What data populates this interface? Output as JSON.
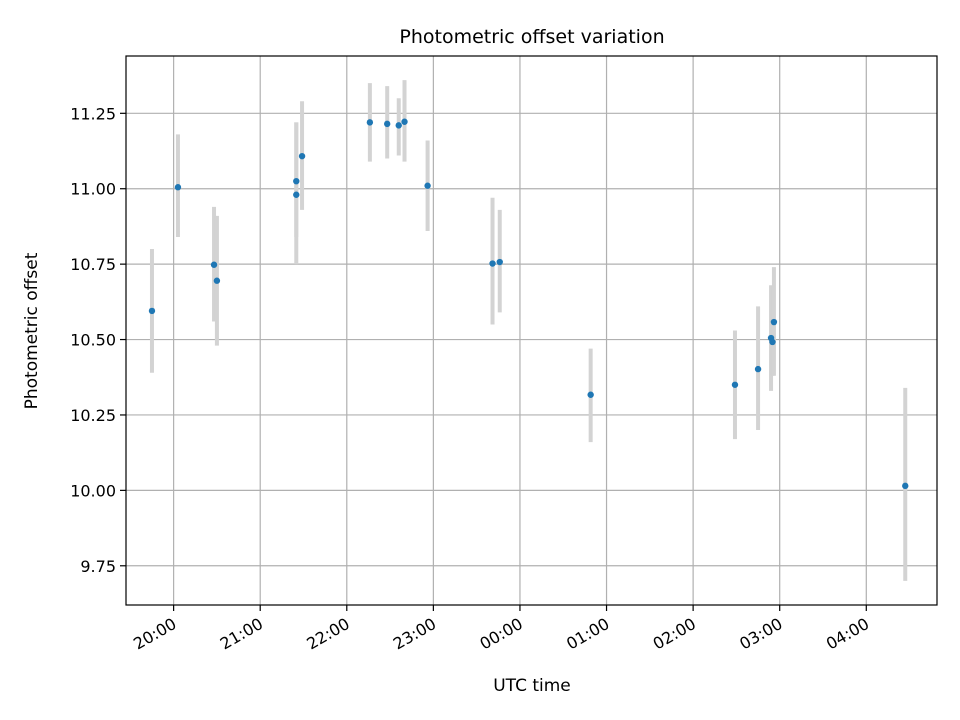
{
  "chart_data": {
    "type": "scatter",
    "title": "Photometric offset variation",
    "xlabel": "UTC time",
    "ylabel": "Photometric offset",
    "grid": true,
    "x_tick_labels": [
      "20:00",
      "21:00",
      "22:00",
      "23:00",
      "00:00",
      "01:00",
      "02:00",
      "03:00",
      "04:00"
    ],
    "y_tick_labels": [
      "9.75",
      "10.00",
      "10.25",
      "10.50",
      "10.75",
      "11.00",
      "11.25"
    ],
    "y_ticks": [
      9.75,
      10.0,
      10.25,
      10.5,
      10.75,
      11.0,
      11.25
    ],
    "xlim": [
      "19:27",
      "04:49"
    ],
    "ylim": [
      9.62,
      11.44
    ],
    "colors": {
      "point": "#1f77b4",
      "errorbar": "#d3d3d3",
      "grid": "#b0b0b0"
    },
    "points": [
      {
        "t": "19:45",
        "y": 10.595,
        "lo": 10.39,
        "hi": 10.8
      },
      {
        "t": "20:03",
        "y": 11.005,
        "lo": 10.84,
        "hi": 11.18
      },
      {
        "t": "20:28",
        "y": 10.748,
        "lo": 10.56,
        "hi": 10.94
      },
      {
        "t": "20:30",
        "y": 10.695,
        "lo": 10.48,
        "hi": 10.91
      },
      {
        "t": "21:25",
        "y": 10.98,
        "lo": 10.75,
        "hi": 11.22
      },
      {
        "t": "21:25",
        "y": 11.025,
        "lo": 10.84,
        "hi": 11.22
      },
      {
        "t": "21:29",
        "y": 11.108,
        "lo": 10.93,
        "hi": 11.29
      },
      {
        "t": "22:16",
        "y": 11.22,
        "lo": 11.09,
        "hi": 11.35
      },
      {
        "t": "22:28",
        "y": 11.215,
        "lo": 11.1,
        "hi": 11.34
      },
      {
        "t": "22:36",
        "y": 11.21,
        "lo": 11.11,
        "hi": 11.3
      },
      {
        "t": "22:40",
        "y": 11.222,
        "lo": 11.09,
        "hi": 11.36
      },
      {
        "t": "22:56",
        "y": 11.01,
        "lo": 10.86,
        "hi": 11.16
      },
      {
        "t": "23:41",
        "y": 10.752,
        "lo": 10.55,
        "hi": 10.97
      },
      {
        "t": "23:46",
        "y": 10.757,
        "lo": 10.59,
        "hi": 10.93
      },
      {
        "t": "00:49",
        "y": 10.317,
        "lo": 10.16,
        "hi": 10.47
      },
      {
        "t": "02:29",
        "y": 10.35,
        "lo": 10.17,
        "hi": 10.53
      },
      {
        "t": "02:45",
        "y": 10.402,
        "lo": 10.2,
        "hi": 10.61
      },
      {
        "t": "02:54",
        "y": 10.505,
        "lo": 10.33,
        "hi": 10.68
      },
      {
        "t": "02:55",
        "y": 10.492,
        "lo": 10.38,
        "hi": 10.6
      },
      {
        "t": "02:56",
        "y": 10.558,
        "lo": 10.38,
        "hi": 10.74
      },
      {
        "t": "04:27",
        "y": 10.015,
        "lo": 9.7,
        "hi": 10.34
      }
    ]
  }
}
